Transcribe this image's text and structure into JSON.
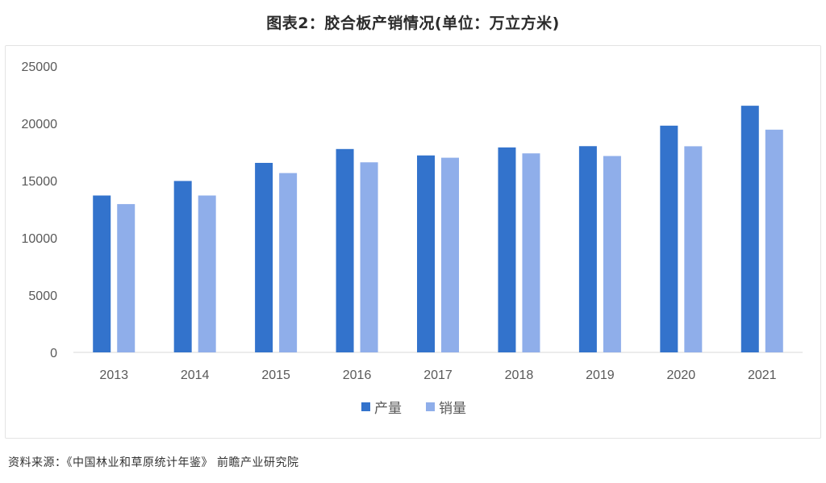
{
  "title": "图表2：胶合板产销情况(单位：万立方米)",
  "source": "资料来源：《中国林业和草原统计年鉴》 前瞻产业研究院",
  "colors": {
    "production": "#3373CC",
    "sales": "#8FAEEA",
    "axis": "#d9d9d9",
    "text": "#595959"
  },
  "chart_data": {
    "type": "bar",
    "categories": [
      "2013",
      "2014",
      "2015",
      "2016",
      "2017",
      "2018",
      "2019",
      "2020",
      "2021"
    ],
    "series": [
      {
        "name": "产量",
        "values": [
          13700,
          14970,
          16550,
          17760,
          17200,
          17900,
          18010,
          19800,
          21540
        ]
      },
      {
        "name": "销量",
        "values": [
          12950,
          13700,
          15660,
          16600,
          17000,
          17380,
          17150,
          18000,
          19450
        ]
      }
    ],
    "yticks": [
      0,
      5000,
      10000,
      15000,
      20000,
      25000
    ],
    "ylim": [
      0,
      25000
    ],
    "grid": false,
    "legend_position": "bottom"
  }
}
